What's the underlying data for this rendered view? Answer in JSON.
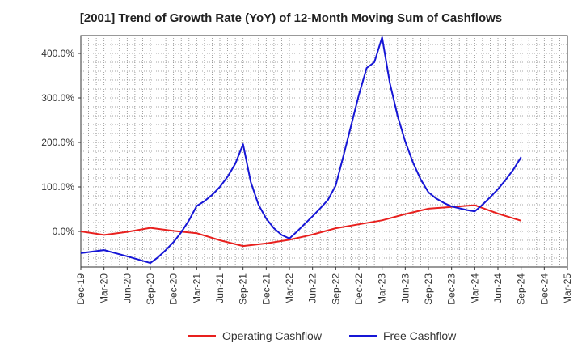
{
  "chart_data": {
    "type": "line",
    "title": "[2001]  Trend of Growth Rate (YoY) of 12-Month Moving Sum of Cashflows",
    "xlabel": "",
    "ylabel": "",
    "x": [
      "Dec-19",
      "Mar-20",
      "Jun-20",
      "Sep-20",
      "Dec-20",
      "Mar-21",
      "Jun-21",
      "Sep-21",
      "Dec-21",
      "Mar-22",
      "Jun-22",
      "Sep-22",
      "Dec-22",
      "Mar-23",
      "Jun-23",
      "Sep-23",
      "Dec-23",
      "Mar-24",
      "Jun-24",
      "Sep-24",
      "Dec-24",
      "Mar-25"
    ],
    "y_ticks": [
      "0.0%",
      "100.0%",
      "200.0%",
      "300.0%",
      "400.0%"
    ],
    "y_tick_values": [
      0,
      100,
      200,
      300,
      400
    ],
    "ylim": [
      -80,
      440
    ],
    "grid": true,
    "legend_position": "bottom",
    "series": [
      {
        "name": "Operating Cashflow",
        "color": "#e8201e",
        "points": [
          [
            "Dec-19",
            0
          ],
          [
            "Mar-20",
            -8
          ],
          [
            "Jun-20",
            -1
          ],
          [
            "Sep-20",
            8
          ],
          [
            "Dec-20",
            1
          ],
          [
            "Mar-21",
            -4
          ],
          [
            "Jun-21",
            -20
          ],
          [
            "Sep-21",
            -33
          ],
          [
            "Dec-21",
            -27
          ],
          [
            "Mar-22",
            -19
          ],
          [
            "Jun-22",
            -7
          ],
          [
            "Sep-22",
            7
          ],
          [
            "Dec-22",
            16
          ],
          [
            "Mar-23",
            25
          ],
          [
            "Jun-23",
            39
          ],
          [
            "Sep-23",
            51
          ],
          [
            "Dec-23",
            55
          ],
          [
            "Mar-24",
            59
          ],
          [
            "Jun-24",
            40
          ],
          [
            "Sep-24",
            24
          ]
        ]
      },
      {
        "name": "Free Cashflow",
        "color": "#1616d6",
        "points": [
          [
            "Dec-19",
            -49
          ],
          [
            "Mar-20",
            -42
          ],
          [
            "Jun-20",
            -56
          ],
          [
            "Jul-20",
            -61
          ],
          [
            "Aug-20",
            -66
          ],
          [
            "Sep-20",
            -71
          ],
          [
            "Oct-20",
            -58
          ],
          [
            "Nov-20",
            -42
          ],
          [
            "Dec-20",
            -24
          ],
          [
            "Jan-21",
            -2
          ],
          [
            "Feb-21",
            25
          ],
          [
            "Mar-21",
            57
          ],
          [
            "Apr-21",
            68
          ],
          [
            "May-21",
            82
          ],
          [
            "Jun-21",
            100
          ],
          [
            "Jul-21",
            123
          ],
          [
            "Aug-21",
            152
          ],
          [
            "Sep-21",
            196
          ],
          [
            "Oct-21",
            111
          ],
          [
            "Nov-21",
            60
          ],
          [
            "Dec-21",
            29
          ],
          [
            "Jan-22",
            7
          ],
          [
            "Feb-22",
            -8
          ],
          [
            "Mar-22",
            -16
          ],
          [
            "Apr-22",
            0
          ],
          [
            "May-22",
            17
          ],
          [
            "Jun-22",
            34
          ],
          [
            "Jul-22",
            52
          ],
          [
            "Aug-22",
            71
          ],
          [
            "Sep-22",
            103
          ],
          [
            "Oct-22",
            170
          ],
          [
            "Nov-22",
            238
          ],
          [
            "Dec-22",
            307
          ],
          [
            "Jan-23",
            367
          ],
          [
            "Feb-23",
            380
          ],
          [
            "Mar-23",
            436
          ],
          [
            "Apr-23",
            334
          ],
          [
            "May-23",
            260
          ],
          [
            "Jun-23",
            202
          ],
          [
            "Jul-23",
            155
          ],
          [
            "Aug-23",
            117
          ],
          [
            "Sep-23",
            88
          ],
          [
            "Oct-23",
            74
          ],
          [
            "Nov-23",
            64
          ],
          [
            "Dec-23",
            56
          ],
          [
            "Jan-24",
            52
          ],
          [
            "Feb-24",
            48
          ],
          [
            "Mar-24",
            45
          ],
          [
            "Apr-24",
            60
          ],
          [
            "May-24",
            77
          ],
          [
            "Jun-24",
            95
          ],
          [
            "Jul-24",
            116
          ],
          [
            "Aug-24",
            139
          ],
          [
            "Sep-24",
            167
          ]
        ]
      }
    ]
  }
}
